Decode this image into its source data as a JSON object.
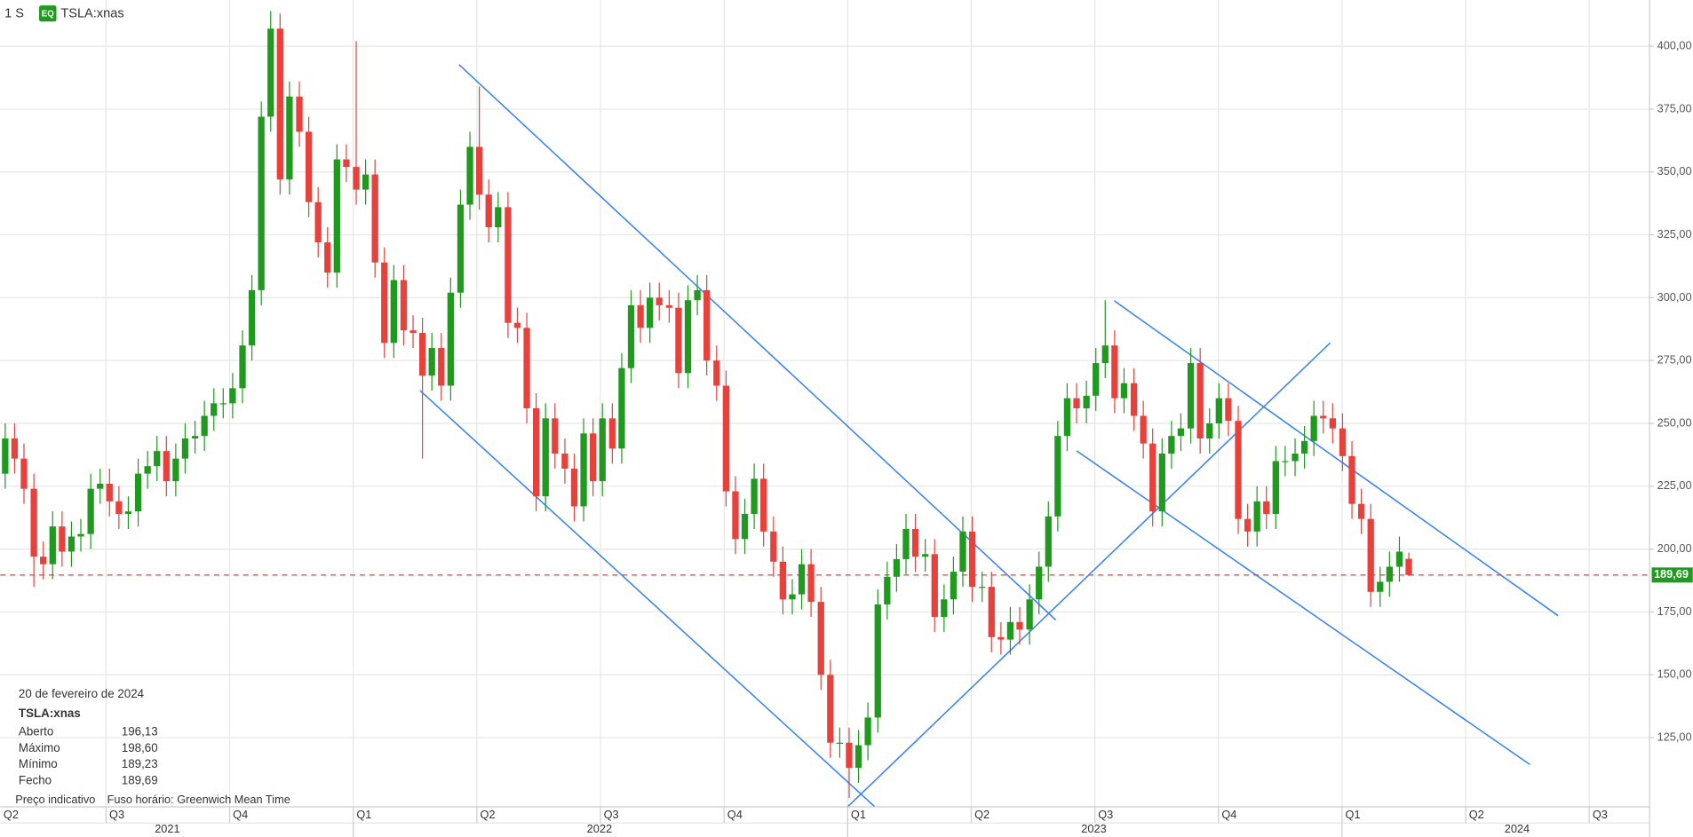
{
  "chart_data": {
    "type": "candlestick",
    "interval": "1 S",
    "symbol_badge": "EQ",
    "symbol": "TSLA:xnas",
    "up_color": "#1f9a1f",
    "down_color": "#e8403a",
    "grid": true,
    "xlim": [
      2021.286,
      2024.622
    ],
    "ylim": [
      97.5,
      418.4
    ],
    "yticks": [
      {
        "value": 125,
        "label": "125,00"
      },
      {
        "value": 150,
        "label": "150,00"
      },
      {
        "value": 175,
        "label": "175,00"
      },
      {
        "value": 200,
        "label": "200,00"
      },
      {
        "value": 225,
        "label": "225,00"
      },
      {
        "value": 250,
        "label": "250,00"
      },
      {
        "value": 275,
        "label": "275,00"
      },
      {
        "value": 300,
        "label": "300,00"
      },
      {
        "value": 325,
        "label": "325,00"
      },
      {
        "value": 350,
        "label": "350,00"
      },
      {
        "value": 375,
        "label": "375,00"
      },
      {
        "value": 400,
        "label": "400,00"
      }
    ],
    "xticks": [
      {
        "value": 2021.25,
        "label": "Q2"
      },
      {
        "value": 2021.5,
        "label": "Q3"
      },
      {
        "value": 2021.75,
        "label": "Q4"
      },
      {
        "value": 2022,
        "label": "Q1"
      },
      {
        "value": 2022.25,
        "label": "Q2"
      },
      {
        "value": 2022.5,
        "label": "Q3"
      },
      {
        "value": 2022.75,
        "label": "Q4"
      },
      {
        "value": 2023,
        "label": "Q1"
      },
      {
        "value": 2023.25,
        "label": "Q2"
      },
      {
        "value": 2023.5,
        "label": "Q3"
      },
      {
        "value": 2023.75,
        "label": "Q4"
      },
      {
        "value": 2024,
        "label": "Q1"
      },
      {
        "value": 2024.25,
        "label": "Q2"
      },
      {
        "value": 2024.5,
        "label": "Q3"
      }
    ],
    "year_labels": [
      {
        "value": 2021.624,
        "label": "2021"
      },
      {
        "value": 2022.498,
        "label": "2022"
      },
      {
        "value": 2023.498,
        "label": "2023"
      },
      {
        "value": 2024.354,
        "label": "2024"
      }
    ],
    "x": [
      2021.296,
      2021.315,
      2021.334,
      2021.354,
      2021.373,
      2021.392,
      2021.411,
      2021.43,
      2021.449,
      2021.469,
      2021.488,
      2021.507,
      2021.526,
      2021.545,
      2021.565,
      2021.584,
      2021.603,
      2021.622,
      2021.641,
      2021.66,
      2021.68,
      2021.699,
      2021.718,
      2021.737,
      2021.756,
      2021.776,
      2021.795,
      2021.814,
      2021.833,
      2021.852,
      2021.871,
      2021.891,
      2021.91,
      2021.929,
      2021.948,
      2021.967,
      2021.986,
      2022.006,
      2022.025,
      2022.044,
      2022.063,
      2022.082,
      2022.102,
      2022.121,
      2022.14,
      2022.159,
      2022.178,
      2022.197,
      2022.217,
      2022.236,
      2022.255,
      2022.274,
      2022.293,
      2022.313,
      2022.332,
      2022.351,
      2022.37,
      2022.389,
      2022.408,
      2022.428,
      2022.447,
      2022.466,
      2022.485,
      2022.504,
      2022.524,
      2022.543,
      2022.562,
      2022.581,
      2022.6,
      2022.619,
      2022.639,
      2022.658,
      2022.677,
      2022.696,
      2022.715,
      2022.735,
      2022.754,
      2022.773,
      2022.792,
      2022.811,
      2022.83,
      2022.85,
      2022.869,
      2022.888,
      2022.907,
      2022.926,
      2022.946,
      2022.965,
      2022.984,
      2023.003,
      2023.022,
      2023.041,
      2023.061,
      2023.08,
      2023.099,
      2023.118,
      2023.137,
      2023.157,
      2023.176,
      2023.195,
      2023.214,
      2023.233,
      2023.252,
      2023.272,
      2023.291,
      2023.31,
      2023.329,
      2023.348,
      2023.368,
      2023.387,
      2023.406,
      2023.425,
      2023.444,
      2023.463,
      2023.483,
      2023.502,
      2023.521,
      2023.54,
      2023.559,
      2023.579,
      2023.598,
      2023.617,
      2023.636,
      2023.655,
      2023.674,
      2023.694,
      2023.713,
      2023.732,
      2023.751,
      2023.77,
      2023.79,
      2023.809,
      2023.828,
      2023.847,
      2023.866,
      2023.885,
      2023.905,
      2023.924,
      2023.943,
      2023.962,
      2023.981,
      2024.001,
      2024.02,
      2024.039,
      2024.058,
      2024.077,
      2024.096,
      2024.116,
      2024.135
    ],
    "open": [
      230,
      244,
      236,
      224,
      197,
      194,
      209,
      199,
      205,
      206,
      224,
      226,
      219,
      214,
      215,
      230,
      233,
      239,
      227,
      236,
      244,
      245,
      253,
      258,
      258,
      264,
      281,
      303,
      372,
      407,
      347,
      380,
      366,
      338,
      322,
      310,
      355,
      352,
      343,
      349,
      314,
      282,
      307,
      287,
      286,
      269,
      280,
      265,
      302,
      337,
      360,
      341,
      328,
      336,
      290,
      288,
      256,
      221,
      252,
      238,
      232,
      217,
      246,
      227,
      252,
      240,
      272,
      297,
      288,
      300,
      297,
      296,
      270,
      299,
      303,
      275,
      265,
      223,
      204,
      214,
      228,
      207,
      195,
      180,
      182,
      194,
      179,
      150,
      123,
      123,
      113,
      122,
      133,
      178,
      189,
      196,
      208,
      197,
      198,
      173,
      180,
      191,
      207,
      185,
      185,
      165,
      164,
      171,
      168,
      180,
      193,
      213,
      245,
      260,
      256,
      261,
      274,
      281,
      260,
      266,
      253,
      242,
      215,
      238,
      245,
      248,
      274,
      244,
      250,
      260,
      251,
      212,
      207,
      219,
      214,
      235,
      235,
      238,
      243,
      253,
      252,
      248,
      237,
      218,
      212,
      183,
      187,
      193,
      196.13
    ],
    "high": [
      250,
      250,
      242,
      230,
      203,
      215,
      215,
      211,
      212,
      230,
      232,
      232,
      225,
      221,
      236,
      239,
      245,
      245,
      242,
      250,
      251,
      259,
      264,
      264,
      270,
      287,
      309,
      378,
      414,
      413,
      386,
      386,
      372,
      344,
      328,
      361,
      361,
      402,
      355,
      355,
      320,
      313,
      313,
      293,
      292,
      286,
      286,
      308,
      343,
      366,
      384,
      347,
      342,
      342,
      296,
      294,
      262,
      258,
      258,
      244,
      238,
      252,
      252,
      258,
      258,
      278,
      303,
      303,
      306,
      306,
      303,
      302,
      305,
      309,
      309,
      281,
      271,
      229,
      220,
      234,
      234,
      213,
      201,
      188,
      200,
      200,
      185,
      156,
      129,
      129,
      128,
      139,
      184,
      195,
      202,
      214,
      214,
      204,
      204,
      186,
      197,
      213,
      213,
      191,
      191,
      171,
      177,
      177,
      186,
      199,
      219,
      251,
      266,
      266,
      267,
      280,
      299,
      287,
      272,
      272,
      259,
      248,
      244,
      251,
      254,
      280,
      280,
      256,
      266,
      266,
      257,
      218,
      225,
      225,
      241,
      241,
      244,
      249,
      259,
      259,
      258,
      254,
      243,
      224,
      218,
      193,
      199,
      205,
      198.6
    ],
    "low": [
      224,
      230,
      218,
      185,
      188,
      188,
      193,
      193,
      199,
      200,
      218,
      213,
      208,
      208,
      209,
      224,
      227,
      221,
      221,
      230,
      238,
      239,
      247,
      252,
      252,
      258,
      275,
      297,
      366,
      341,
      341,
      360,
      332,
      316,
      304,
      304,
      346,
      337,
      337,
      308,
      276,
      276,
      281,
      280,
      236,
      263,
      259,
      259,
      296,
      331,
      335,
      322,
      322,
      284,
      282,
      250,
      215,
      215,
      232,
      226,
      211,
      211,
      221,
      221,
      234,
      234,
      266,
      282,
      282,
      291,
      290,
      264,
      264,
      293,
      269,
      259,
      217,
      198,
      198,
      208,
      201,
      189,
      174,
      174,
      176,
      173,
      144,
      117,
      117,
      101,
      107,
      116,
      127,
      172,
      183,
      190,
      191,
      191,
      167,
      167,
      174,
      185,
      179,
      179,
      159,
      158,
      158,
      162,
      162,
      174,
      187,
      207,
      239,
      250,
      250,
      255,
      268,
      254,
      254,
      247,
      236,
      209,
      209,
      232,
      239,
      242,
      238,
      238,
      244,
      245,
      206,
      201,
      201,
      208,
      208,
      229,
      229,
      232,
      237,
      246,
      242,
      231,
      212,
      206,
      177,
      177,
      181,
      187,
      189.23
    ],
    "close": [
      244,
      236,
      224,
      197,
      194,
      209,
      199,
      205,
      206,
      224,
      226,
      219,
      214,
      215,
      230,
      233,
      239,
      227,
      236,
      244,
      245,
      253,
      258,
      258,
      264,
      281,
      303,
      372,
      407,
      347,
      380,
      366,
      338,
      322,
      310,
      355,
      352,
      343,
      349,
      314,
      282,
      307,
      287,
      286,
      269,
      280,
      265,
      302,
      337,
      360,
      341,
      328,
      336,
      290,
      288,
      256,
      221,
      252,
      238,
      232,
      217,
      246,
      227,
      252,
      240,
      272,
      297,
      288,
      300,
      297,
      296,
      270,
      299,
      303,
      275,
      265,
      223,
      204,
      214,
      228,
      207,
      195,
      180,
      182,
      194,
      179,
      150,
      123,
      123,
      113,
      122,
      133,
      178,
      189,
      196,
      208,
      197,
      198,
      173,
      180,
      191,
      207,
      185,
      185,
      165,
      164,
      171,
      168,
      180,
      193,
      213,
      245,
      260,
      256,
      261,
      274,
      281,
      260,
      266,
      253,
      242,
      215,
      238,
      245,
      248,
      274,
      244,
      250,
      260,
      251,
      212,
      207,
      219,
      214,
      235,
      235,
      238,
      243,
      253,
      252,
      248,
      237,
      218,
      212,
      183,
      187,
      193,
      199,
      189.69
    ],
    "trendline_color": "#3a86e8",
    "trendlines": [
      {
        "x": [
          2022.214,
          2023.421
        ],
        "y": [
          392.7,
          171.8
        ]
      },
      {
        "x": [
          2022.135,
          2023.055
        ],
        "y": [
          263.1,
          97.5
        ]
      },
      {
        "x": [
          2023.0,
          2023.976
        ],
        "y": [
          97.5,
          282.0
        ]
      },
      {
        "x": [
          2023.539,
          2024.437
        ],
        "y": [
          298.8,
          173.5
        ]
      },
      {
        "x": [
          2023.463,
          2024.38
        ],
        "y": [
          239.1,
          114.3
        ]
      }
    ],
    "last_price": {
      "value": 189.69,
      "label": "189,69"
    },
    "last_price_color": "#e8403a",
    "last_price_badge_color": "#1f9a1f",
    "info": {
      "date": "20 de fevereiro de 2024",
      "symbol": "TSLA:xnas",
      "rows": [
        {
          "label": "Aberto",
          "value": "196,13"
        },
        {
          "label": "Máximo",
          "value": "198,60"
        },
        {
          "label": "Mínimo",
          "value": "189,23"
        },
        {
          "label": "Fecho",
          "value": "189,69"
        }
      ],
      "footer": [
        "Preço indicativo",
        "Fuso horário: Greenwich Mean Time"
      ]
    }
  }
}
